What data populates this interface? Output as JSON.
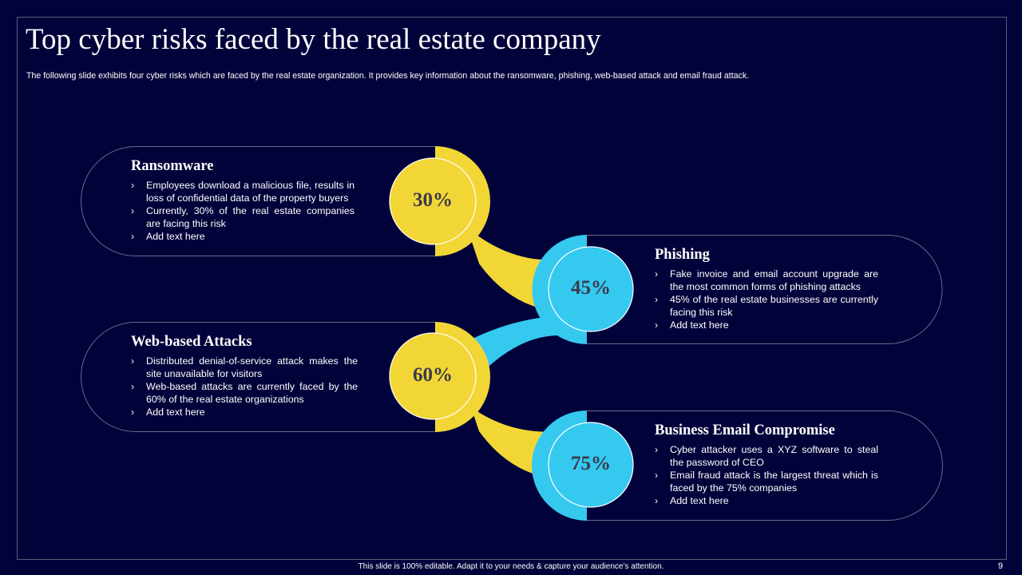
{
  "header": {
    "title": "Top cyber risks faced by the real estate company",
    "subtitle": "The following slide exhibits four cyber risks which are faced by the real estate organization. It provides key information about the ransomware, phishing, web-based attack and email fraud attack."
  },
  "risks": [
    {
      "title": "Ransomware",
      "percent": "30%",
      "bullets": [
        "Employees download  a malicious file, results in loss of confidential  data of the property buyers",
        "Currently, 30% of the real estate companies are facing this risk",
        "Add text here"
      ]
    },
    {
      "title": "Phishing",
      "percent": "45%",
      "bullets": [
        "Fake invoice and email account upgrade are the most common forms of phishing attacks",
        "45% of the real estate businesses are currently facing this risk",
        "Add text here"
      ]
    },
    {
      "title": "Web-based Attacks",
      "percent": "60%",
      "bullets": [
        "Distributed denial-of-service  attack makes the site unavailable  for visitors",
        "Web-based attacks are currently faced by the 60% of the real estate organizations",
        "Add text here"
      ]
    },
    {
      "title": "Business Email Compromise",
      "percent": "75%",
      "bullets": [
        "Cyber attacker uses a XYZ  software  to steal the password of CEO",
        "Email fraud  attack is the largest threat which is faced by the 75% companies",
        "Add text here"
      ]
    }
  ],
  "footer": {
    "note": "This slide is 100% editable.  Adapt it to your needs & capture your audience’s attention.",
    "page": "9"
  }
}
